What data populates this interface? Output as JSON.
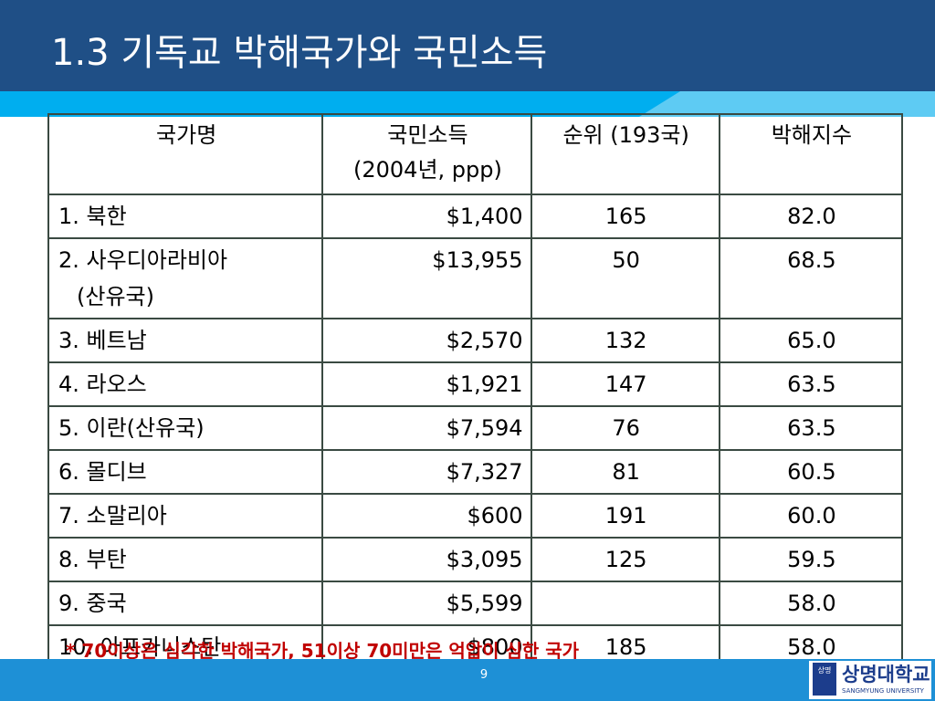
{
  "slide": {
    "title": "1.3 기독교 박해국가와 국민소득",
    "page_number": "9",
    "note": "* 70이상은 심각한 박해국가, 51이상 70미만은 억압이 심한 국가"
  },
  "table": {
    "headers": {
      "country": "국가명",
      "income_line1": "국민소득",
      "income_line2": "(2004년, ppp)",
      "rank": "순위 (193국)",
      "index": "박해지수"
    },
    "rows": [
      {
        "country": "1. 북한",
        "country2": "",
        "income": "$1,400",
        "rank": "165",
        "index": "82.0"
      },
      {
        "country": "2. 사우디아라비아",
        "country2": "(산유국)",
        "income": "$13,955",
        "rank": "50",
        "index": "68.5"
      },
      {
        "country": "3. 베트남",
        "country2": "",
        "income": "$2,570",
        "rank": "132",
        "index": "65.0"
      },
      {
        "country": "4. 라오스",
        "country2": "",
        "income": "$1,921",
        "rank": "147",
        "index": "63.5"
      },
      {
        "country": "5. 이란(산유국)",
        "country2": "",
        "income": "$7,594",
        "rank": "76",
        "index": "63.5"
      },
      {
        "country": "6. 몰디브",
        "country2": "",
        "income": "$7,327",
        "rank": "81",
        "index": "60.5"
      },
      {
        "country": "7. 소말리아",
        "country2": "",
        "income": "$600",
        "rank": "191",
        "index": "60.0"
      },
      {
        "country": "8. 부탄",
        "country2": "",
        "income": "$3,095",
        "rank": "125",
        "index": "59.5"
      },
      {
        "country": "9. 중국",
        "country2": "",
        "income": "$5,599",
        "rank": "",
        "index": "58.0"
      },
      {
        "country": "10. 아프카니스탄",
        "country2": "",
        "income": "$800",
        "rank": "185",
        "index": "58.0"
      }
    ]
  },
  "logo": {
    "mark": "상명",
    "name": "상명대학교",
    "sub": "SANGMYUNG UNIVERSITY"
  },
  "colors": {
    "header_dark": "#1f4f86",
    "header_light": "#00aeef",
    "footer": "#1e90d6",
    "note": "#c00000",
    "brand": "#1c3d8c"
  }
}
